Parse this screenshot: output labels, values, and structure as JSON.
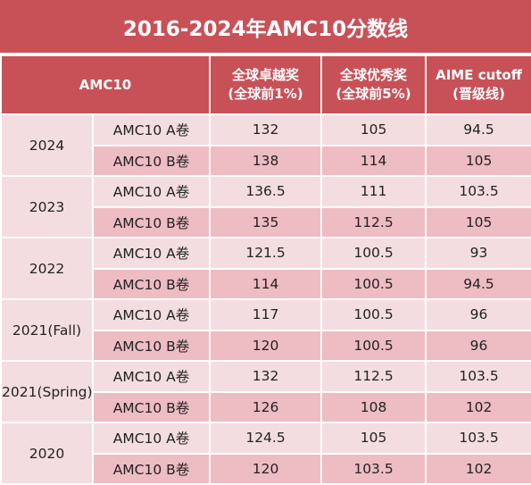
{
  "title": "2016-2024年AMC10分数线",
  "header": {
    "contest": "AMC10",
    "col_top1_line1": "全球卓越奖",
    "col_top1_line2": "(全球前1%)",
    "col_top5_line1": "全球优秀奖",
    "col_top5_line2": "(全球前5%)",
    "col_aime_line1": "AIME cutoff",
    "col_aime_line2": "(晋级线)"
  },
  "years": [
    {
      "year": "2024",
      "rows": [
        {
          "paper": "AMC10 A卷",
          "top1": "132",
          "top5": "105",
          "aime": "94.5"
        },
        {
          "paper": "AMC10 B卷",
          "top1": "138",
          "top5": "114",
          "aime": "105"
        }
      ]
    },
    {
      "year": "2023",
      "rows": [
        {
          "paper": "AMC10 A卷",
          "top1": "136.5",
          "top5": "111",
          "aime": "103.5"
        },
        {
          "paper": "AMC10 B卷",
          "top1": "135",
          "top5": "112.5",
          "aime": "105"
        }
      ]
    },
    {
      "year": "2022",
      "rows": [
        {
          "paper": "AMC10 A卷",
          "top1": "121.5",
          "top5": "100.5",
          "aime": "93"
        },
        {
          "paper": "AMC10 B卷",
          "top1": "114",
          "top5": "100.5",
          "aime": "94.5"
        }
      ]
    },
    {
      "year": "2021(Fall)",
      "rows": [
        {
          "paper": "AMC10 A卷",
          "top1": "117",
          "top5": "100.5",
          "aime": "96"
        },
        {
          "paper": "AMC10 B卷",
          "top1": "120",
          "top5": "100.5",
          "aime": "96"
        }
      ]
    },
    {
      "year": "2021(Spring)",
      "rows": [
        {
          "paper": "AMC10 A卷",
          "top1": "132",
          "top5": "112.5",
          "aime": "103.5"
        },
        {
          "paper": "AMC10 B卷",
          "top1": "126",
          "top5": "108",
          "aime": "102"
        }
      ]
    },
    {
      "year": "2020",
      "rows": [
        {
          "paper": "AMC10 A卷",
          "top1": "124.5",
          "top5": "105",
          "aime": "103.5"
        },
        {
          "paper": "AMC10 B卷",
          "top1": "120",
          "top5": "103.5",
          "aime": "102"
        }
      ]
    }
  ],
  "colors": {
    "header_bg": "#c85158",
    "row_light": "#f4dde0",
    "row_dark": "#eebcc3"
  }
}
